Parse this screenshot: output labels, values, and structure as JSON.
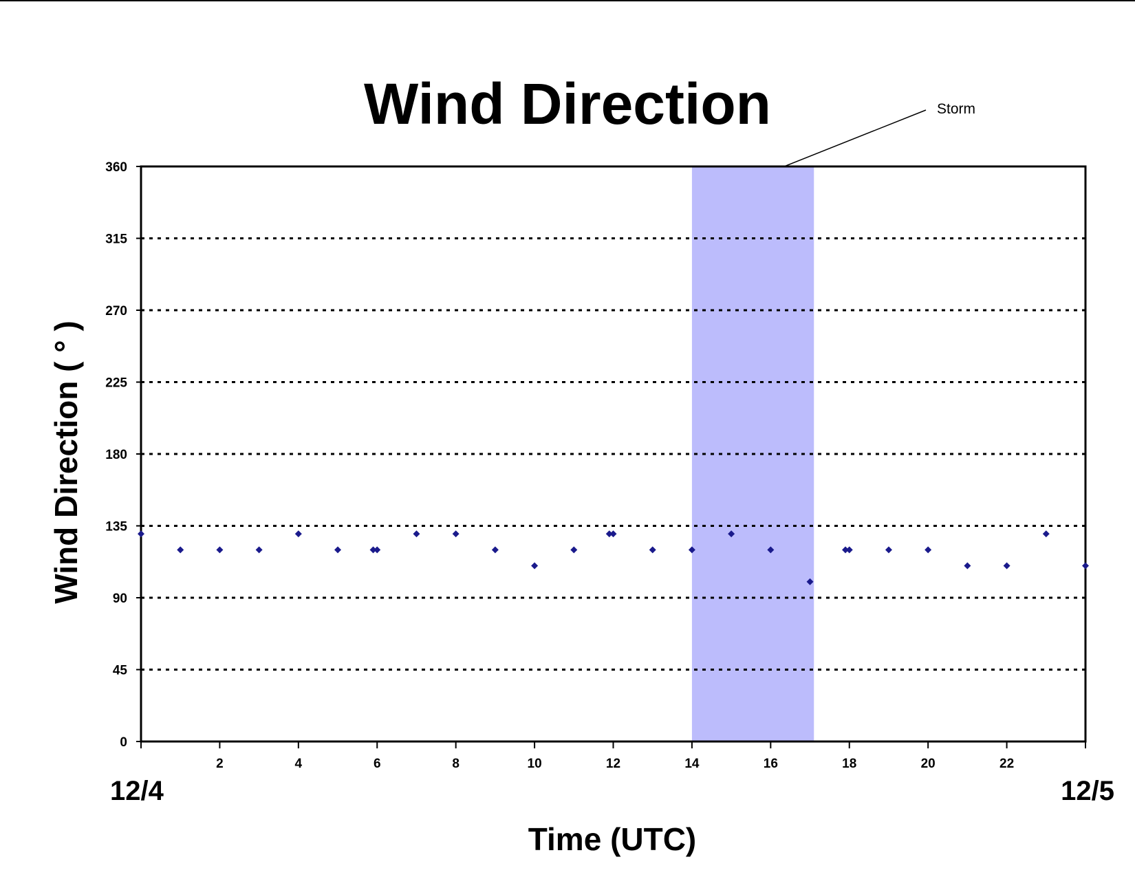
{
  "chart_data": {
    "type": "scatter",
    "title": "Wind Direction",
    "xlabel": "Time (UTC)",
    "ylabel": "Wind Direction ( ° )",
    "xlim": [
      0,
      24
    ],
    "ylim": [
      0,
      360
    ],
    "yticks": [
      0,
      45,
      90,
      135,
      180,
      225,
      270,
      315,
      360
    ],
    "xticks": [
      2,
      4,
      6,
      8,
      10,
      12,
      14,
      16,
      18,
      20,
      22
    ],
    "date_labels": {
      "start": "12/4",
      "end": "12/5"
    },
    "grid": "horizontal dotted",
    "marker_color": "#1a1a8c",
    "storm": {
      "label": "Storm",
      "x_start": 14,
      "x_end": 17.1,
      "color": "#bcbcfc"
    },
    "series": [
      {
        "x": [
          0,
          1,
          2,
          3,
          4,
          5,
          5.9,
          6,
          7,
          8,
          9,
          10,
          11,
          11.9,
          12,
          13,
          14,
          15,
          16,
          17,
          17.9,
          18,
          19,
          20,
          21,
          22,
          23,
          24
        ],
        "y": [
          130,
          120,
          120,
          120,
          130,
          120,
          120,
          120,
          130,
          130,
          120,
          110,
          120,
          130,
          130,
          120,
          120,
          130,
          120,
          100,
          120,
          120,
          120,
          120,
          110,
          110,
          130,
          110
        ]
      }
    ]
  }
}
